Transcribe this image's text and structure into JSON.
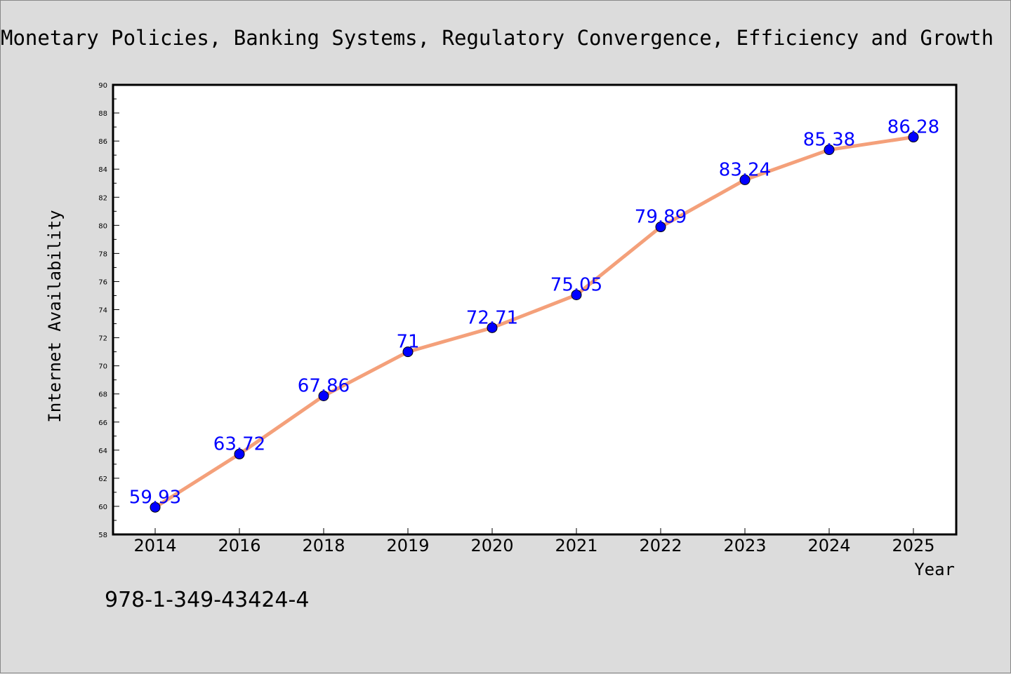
{
  "chart_data": {
    "type": "line",
    "title": "Monetary Policies, Banking Systems, Regulatory Convergence, Efficiency and Growth",
    "xlabel": "Year",
    "ylabel": "Internet Availability",
    "categories": [
      "2014",
      "2016",
      "2018",
      "2019",
      "2020",
      "2021",
      "2022",
      "2023",
      "2024",
      "2025"
    ],
    "values": [
      59.93,
      63.72,
      67.86,
      71,
      72.71,
      75.05,
      79.89,
      83.24,
      85.38,
      86.28
    ],
    "data_labels": [
      "59.93",
      "63.72",
      "67.86",
      "71",
      "72.71",
      "75.05",
      "79.89",
      "83.24",
      "85.38",
      "86.28"
    ],
    "ylim": [
      58,
      90
    ],
    "yticks": [
      58,
      60,
      62,
      64,
      66,
      68,
      70,
      72,
      74,
      76,
      78,
      80,
      82,
      84,
      86,
      88,
      90
    ],
    "grid": false,
    "legend": "none",
    "colors": {
      "line": "#f4a07a",
      "marker": "#0000ff",
      "data_label": "#0000ff",
      "background": "#dcdcdc",
      "plot_background": "#ffffff"
    }
  },
  "annotation": {
    "isbn": "978-1-349-43424-4"
  }
}
